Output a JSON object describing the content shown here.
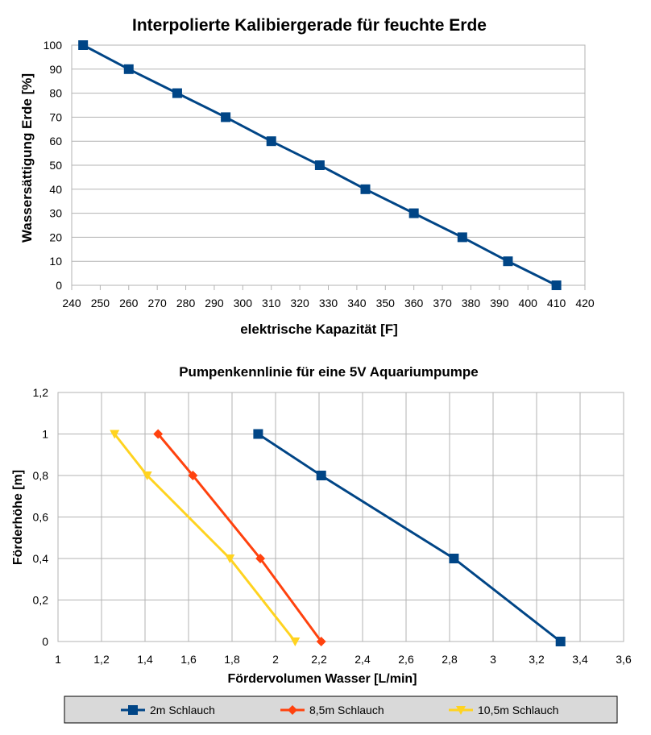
{
  "chart_data": [
    {
      "type": "line",
      "title": "Interpolierte Kalibiergerade für feuchte Erde",
      "xlabel": "elektrische Kapazität [F]",
      "ylabel": "Wassersättigung Erde [%]",
      "xlim": [
        240,
        420
      ],
      "ylim": [
        0,
        100
      ],
      "x_ticks": [
        "240",
        "250",
        "260",
        "270",
        "280",
        "290",
        "300",
        "310",
        "320",
        "330",
        "340",
        "350",
        "360",
        "370",
        "380",
        "390",
        "400",
        "410",
        "420"
      ],
      "y_ticks": [
        "0",
        "10",
        "20",
        "30",
        "40",
        "50",
        "60",
        "70",
        "80",
        "90",
        "100"
      ],
      "grid": "horizontal",
      "series": [
        {
          "color": "#004586",
          "marker": "square",
          "x": [
            244,
            260,
            277,
            294,
            310,
            327,
            343,
            360,
            377,
            393,
            410
          ],
          "y": [
            100,
            90,
            80,
            70,
            60,
            50,
            40,
            30,
            20,
            10,
            0
          ]
        }
      ]
    },
    {
      "type": "line",
      "title": "Pumpenkennlinie für eine 5V Aquariumpumpe",
      "xlabel": "Fördervolumen Wasser [L/min]",
      "ylabel": "Förderhöhe [m]",
      "xlim": [
        1,
        3.6
      ],
      "ylim": [
        0,
        1.2
      ],
      "x_ticks": [
        "1",
        "1,2",
        "1,4",
        "1,6",
        "1,8",
        "2",
        "2,2",
        "2,4",
        "2,6",
        "2,8",
        "3",
        "3,2",
        "3,4",
        "3,6"
      ],
      "y_ticks": [
        "0",
        "0,2",
        "0,4",
        "0,6",
        "0,8",
        "1",
        "1,2"
      ],
      "grid": "both",
      "legend_position": "bottom",
      "series": [
        {
          "name": "2m Schlauch",
          "color": "#004586",
          "marker": "square",
          "x": [
            1.92,
            2.21,
            2.82,
            3.31
          ],
          "y": [
            1,
            0.8,
            0.4,
            0
          ]
        },
        {
          "name": "8,5m Schlauch",
          "color": "#ff420e",
          "marker": "diamond",
          "x": [
            1.46,
            1.62,
            1.93,
            2.21
          ],
          "y": [
            1,
            0.8,
            0.4,
            0
          ]
        },
        {
          "name": "10,5m Schlauch",
          "color": "#ffd320",
          "marker": "triangle-down",
          "x": [
            1.26,
            1.41,
            1.79,
            2.09
          ],
          "y": [
            1,
            0.8,
            0.4,
            0
          ]
        }
      ]
    }
  ]
}
